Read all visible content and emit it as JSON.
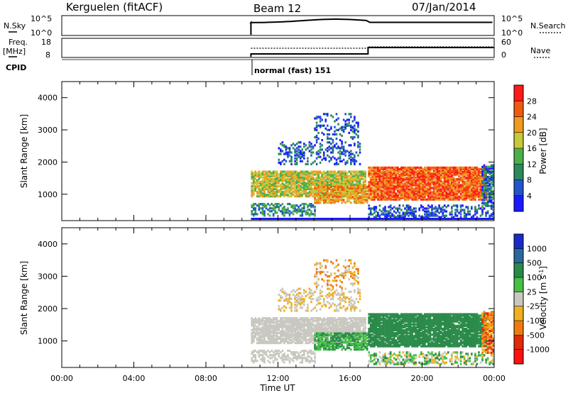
{
  "header": {
    "station": "Kerguelen (fitACF)",
    "beam": "Beam 12",
    "date": "07/Jan/2014"
  },
  "strip_panels": {
    "nsky": {
      "label": "N.Sky",
      "ticks": [
        "10^5",
        "10^0"
      ]
    },
    "nsearch": {
      "label": "N.Search",
      "ticks": [
        "10^5",
        "10^0"
      ]
    },
    "freq": {
      "label_line1": "Freq.",
      "label_line2": "[MHz]",
      "ticks": [
        "18",
        "8"
      ]
    },
    "nave": {
      "label": "Nave",
      "ticks": [
        "60",
        "0"
      ]
    },
    "cpid": {
      "label": "CPID",
      "mode_text": "normal (fast) 151"
    }
  },
  "chart_data": [
    {
      "type": "heatmap",
      "name": "power",
      "ylabel": "Slant Range [km]",
      "xlabel": "Time UT",
      "xlim_hours": [
        0,
        24
      ],
      "ylim_km": [
        180,
        4500
      ],
      "x_ticks": [
        "00:00",
        "04:00",
        "08:00",
        "12:00",
        "16:00",
        "20:00",
        "00:00"
      ],
      "y_ticks": [
        "1000",
        "2000",
        "3000",
        "4000"
      ],
      "colorbar": {
        "label": "Power [dB]",
        "ticks": [
          "4",
          "8",
          "12",
          "16",
          "20",
          "24",
          "28"
        ],
        "colors": [
          "#1a1aff",
          "#2255cc",
          "#2a8a5a",
          "#4ab04a",
          "#c8c83a",
          "#f09a20",
          "#f05a10",
          "#ff1a1a"
        ]
      }
    },
    {
      "type": "heatmap",
      "name": "velocity",
      "ylabel": "Slant Range [km]",
      "xlabel": "Time UT",
      "xlim_hours": [
        0,
        24
      ],
      "ylim_km": [
        180,
        4500
      ],
      "x_ticks": [
        "00:00",
        "04:00",
        "08:00",
        "12:00",
        "16:00",
        "20:00",
        "00:00"
      ],
      "y_ticks": [
        "1000",
        "2000",
        "3000",
        "4000"
      ],
      "colorbar": {
        "label": "Velocity [m s",
        "label_superscript": "-1",
        "label_tail": "]",
        "ticks": [
          "1000",
          "500",
          "100",
          "25",
          "-25",
          "-100",
          "-500",
          "-1000"
        ],
        "colors": [
          "#1a2ac8",
          "#2a6a9a",
          "#2a8a4a",
          "#44c044",
          "#c8c8c0",
          "#f0b020",
          "#f07a10",
          "#e02a0a",
          "#ff1010"
        ]
      }
    }
  ]
}
